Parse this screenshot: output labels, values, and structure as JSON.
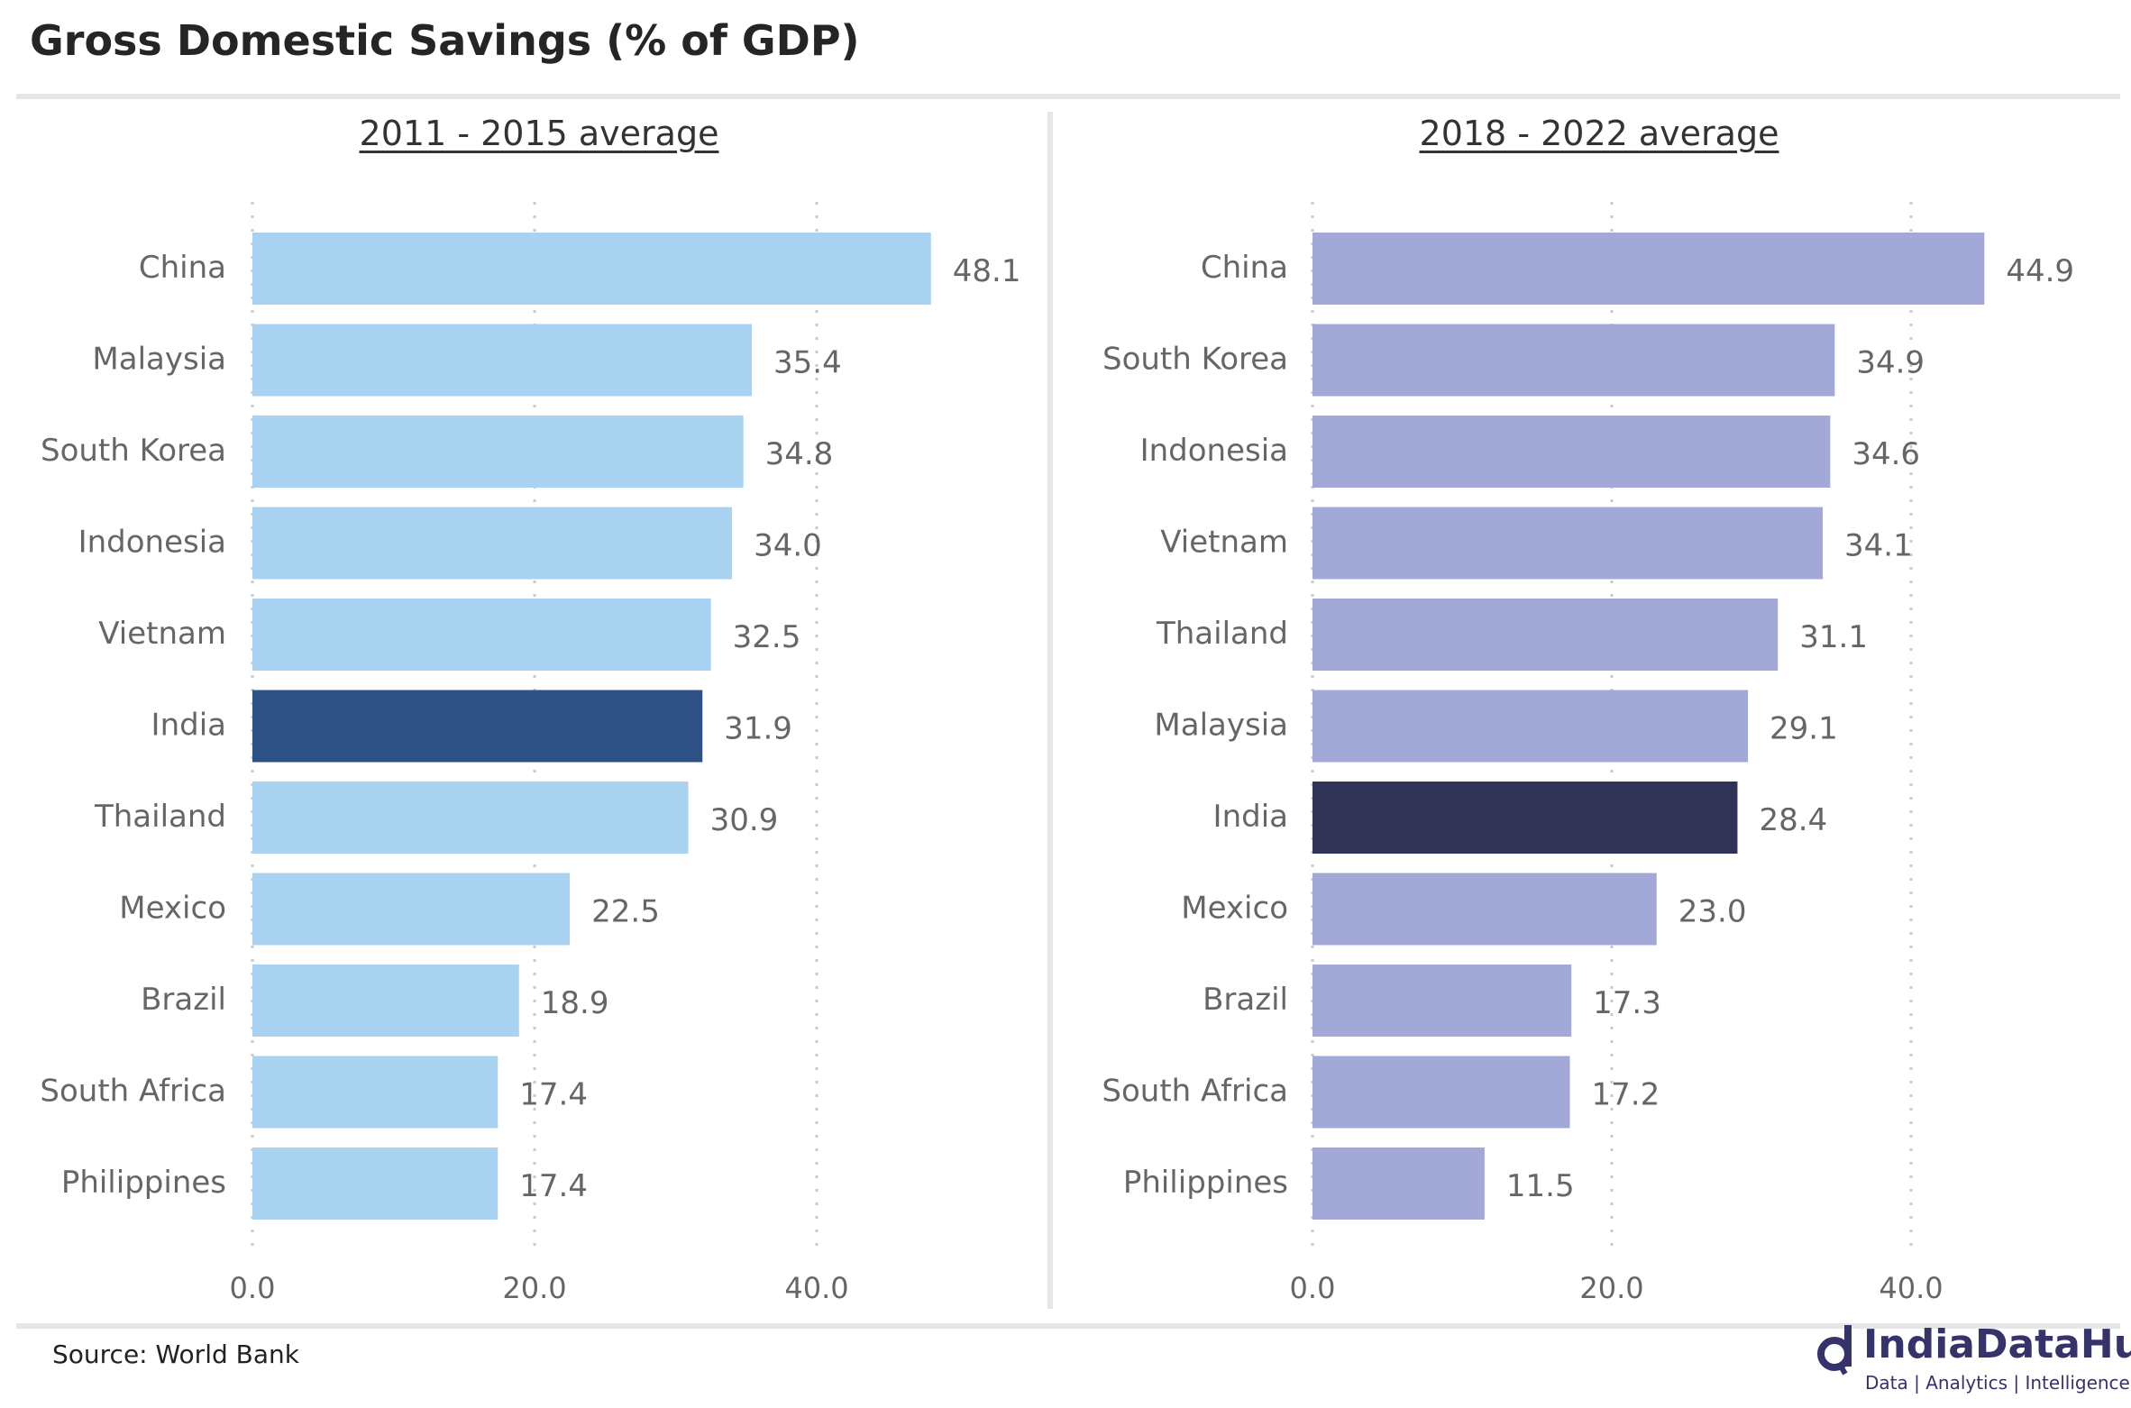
{
  "title": "Gross Domestic Savings (% of GDP)",
  "source": "Source: World Bank",
  "logo": {
    "name": "IndiaDataHub",
    "tagline": "Data | Analytics | Intelligence"
  },
  "chart_data": [
    {
      "type": "bar",
      "orientation": "horizontal",
      "title": "2011 - 2015 average",
      "categories": [
        "China",
        "Malaysia",
        "South Korea",
        "Indonesia",
        "Vietnam",
        "India",
        "Thailand",
        "Mexico",
        "Brazil",
        "South Africa",
        "Philippines"
      ],
      "values": [
        48.1,
        35.4,
        34.8,
        34.0,
        32.5,
        31.9,
        30.9,
        22.5,
        18.9,
        17.4,
        17.4
      ],
      "value_labels": [
        "48.1",
        "35.4",
        "34.8",
        "34.0",
        "32.5",
        "31.9",
        "30.9",
        "22.5",
        "18.9",
        "17.4",
        "17.4"
      ],
      "xticks": [
        "0.0",
        "20.0",
        "40.0"
      ],
      "xtick_values": [
        0,
        20,
        40
      ],
      "xlim": [
        0,
        55
      ],
      "color": "#a9d1f0",
      "highlight": "India",
      "highlight_color": "#2e5283",
      "grid": true
    },
    {
      "type": "bar",
      "orientation": "horizontal",
      "title": "2018 - 2022 average",
      "categories": [
        "China",
        "South Korea",
        "Indonesia",
        "Vietnam",
        "Thailand",
        "Malaysia",
        "India",
        "Mexico",
        "Brazil",
        "South Africa",
        "Philippines"
      ],
      "values": [
        44.9,
        34.9,
        34.6,
        34.1,
        31.1,
        29.1,
        28.4,
        23.0,
        17.3,
        17.2,
        11.5
      ],
      "value_labels": [
        "44.9",
        "34.9",
        "34.6",
        "34.1",
        "31.1",
        "29.1",
        "28.4",
        "23.0",
        "17.3",
        "17.2",
        "11.5"
      ],
      "xticks": [
        "0.0",
        "20.0",
        "40.0"
      ],
      "xtick_values": [
        0,
        20,
        40
      ],
      "xlim": [
        0,
        52
      ],
      "color": "#a3a9d6",
      "highlight": "India",
      "highlight_color": "#303356",
      "grid": true
    }
  ]
}
